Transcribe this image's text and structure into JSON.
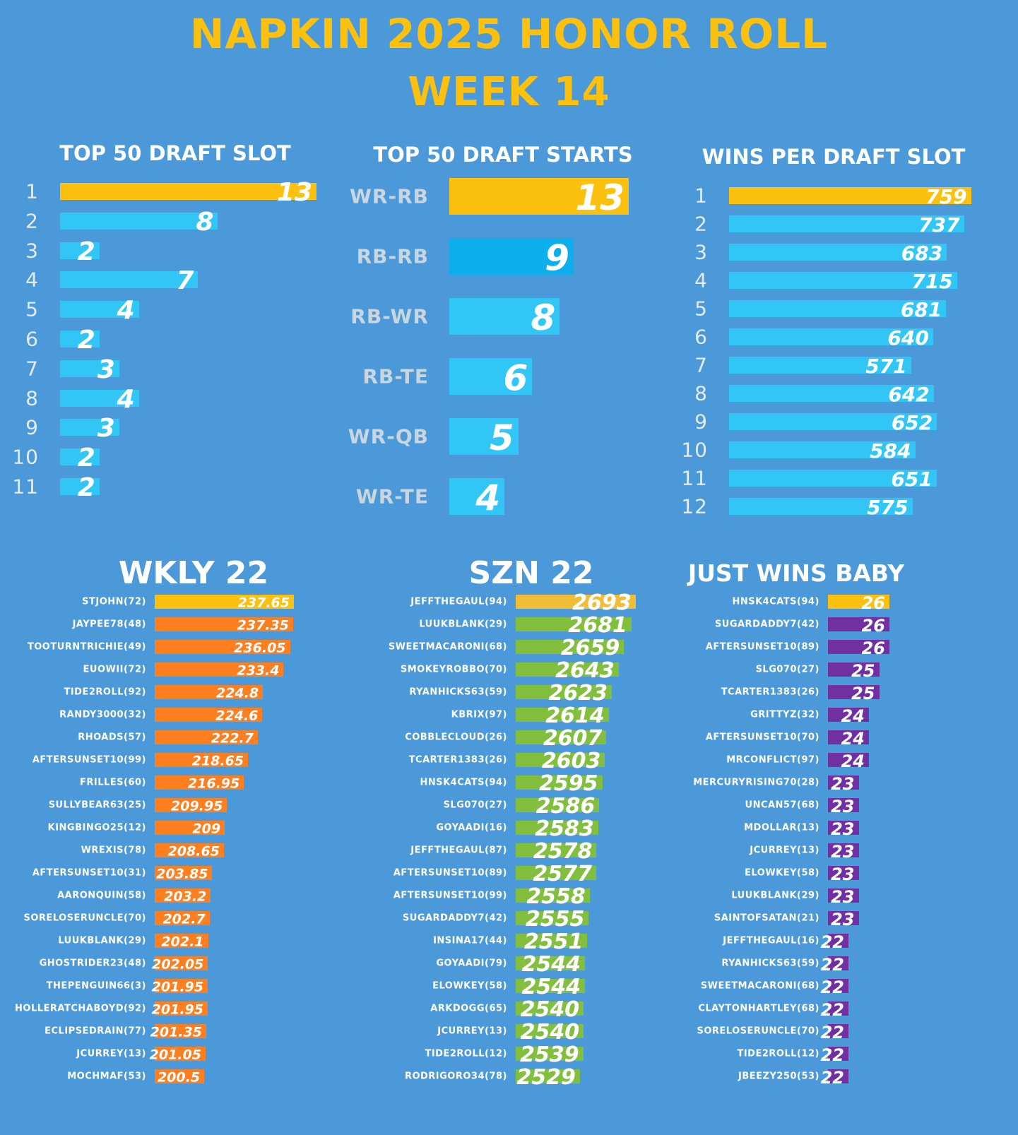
{
  "header": {
    "title": "NAPKIN 2025 HONOR ROLL",
    "subtitle": "WEEK 14"
  },
  "colors": {
    "background": "#4b99d9",
    "highlight": "#fcc10e",
    "cyan": "#32c6f6",
    "dark_cyan": "#0caeec",
    "orange": "#fd7f20",
    "green": "#82bf3f",
    "purple": "#7030a0",
    "title_gold": "#fcc10e"
  },
  "chart_data": [
    {
      "type": "bar",
      "orientation": "horizontal",
      "title": "TOP 50 DRAFT SLOT",
      "categories": [
        "1",
        "2",
        "3",
        "4",
        "5",
        "6",
        "7",
        "8",
        "9",
        "10",
        "11"
      ],
      "values": [
        13,
        8,
        2,
        7,
        4,
        2,
        3,
        4,
        3,
        2,
        2
      ],
      "xlim": [
        0,
        13
      ],
      "bar_color": "#32c6f6",
      "top_color": "#fcc10e"
    },
    {
      "type": "bar",
      "orientation": "horizontal",
      "title": "TOP 50 DRAFT STARTS",
      "categories": [
        "WR-RB",
        "RB-RB",
        "RB-WR",
        "RB-TE",
        "WR-QB",
        "WR-TE"
      ],
      "values": [
        13,
        9,
        8,
        6,
        5,
        4
      ],
      "xlim": [
        0,
        13
      ],
      "bar_color": "#32c6f6",
      "top_color": "#fcc10e",
      "second_color": "#0caeec"
    },
    {
      "type": "bar",
      "orientation": "horizontal",
      "title": "WINS PER DRAFT SLOT",
      "categories": [
        "1",
        "2",
        "3",
        "4",
        "5",
        "6",
        "7",
        "8",
        "9",
        "10",
        "11",
        "12"
      ],
      "values": [
        759,
        737,
        683,
        715,
        681,
        640,
        571,
        642,
        652,
        584,
        651,
        575
      ],
      "xlim": [
        0,
        760
      ],
      "bar_color": "#32c6f6",
      "top_color": "#fcc10e"
    },
    {
      "type": "bar",
      "orientation": "horizontal",
      "title": "WKLY 22",
      "categories": [
        "STJOHN(72)",
        "JAYPEE78(48)",
        "TOOTURNTRICHIE(49)",
        "EUOWII(72)",
        "TIDE2ROLL(92)",
        "RANDY3000(32)",
        "RHOADS(57)",
        "AFTERSUNSET10(99)",
        "FRILLES(60)",
        "SULLYBEAR63(25)",
        "KINGBINGO25(12)",
        "WREXIS(78)",
        "AFTERSUNSET10(31)",
        "AARONQUIN(58)",
        "SORELOSERUNCLE(70)",
        "LUUKBLANK(29)",
        "GHOSTRIDER23(48)",
        "THEPENGUIN66(3)",
        "HOLLERATCHABOYD(92)",
        "ECLIPSEDRAIN(77)",
        "JCURREY(13)",
        "MOCHMAF(53)"
      ],
      "values": [
        "237.65",
        "237.35",
        "236.05",
        "233.4",
        "224.8",
        "224.6",
        "222.7",
        "218.65",
        "216.95",
        "209.95",
        "209",
        "208.65",
        "203.85",
        "203.2",
        "202.7",
        "202.1",
        "202.05",
        "201.95",
        "201.95",
        "201.35",
        "201.05",
        "200.5"
      ],
      "xlim": [
        180,
        240
      ],
      "bar_color": "#fd7f20",
      "top_color": "#fcc10e"
    },
    {
      "type": "bar",
      "orientation": "horizontal",
      "title": "SZN 22",
      "categories": [
        "JEFFTHEGAUL(94)",
        "LUUKBLANK(29)",
        "SWEETMACARONI(68)",
        "SMOKEYROBBO(70)",
        "RYANHICKS63(59)",
        "KBRIX(97)",
        "COBBLECLOUD(26)",
        "TCARTER1383(26)",
        "HNSK4CATS(94)",
        "SLG070(27)",
        "GOYAADI(16)",
        "JEFFTHEGAUL(87)",
        "AFTERSUNSET10(89)",
        "AFTERSUNSET10(99)",
        "SUGARDADDY7(42)",
        "INSINA17(44)",
        "GOYAADI(79)",
        "ELOWKEY(58)",
        "ARKDOGG(65)",
        "JCURREY(13)",
        "TIDE2ROLL(12)",
        "RODRIGORO34(78)"
      ],
      "values": [
        2693,
        2681,
        2659,
        2643,
        2623,
        2614,
        2607,
        2603,
        2595,
        2586,
        2583,
        2578,
        2577,
        2558,
        2555,
        2551,
        2544,
        2544,
        2540,
        2540,
        2539,
        2529
      ],
      "xlim": [
        2340,
        2700
      ],
      "bar_color": "#82bf3f",
      "top_color": "#f0bd38"
    },
    {
      "type": "bar",
      "orientation": "horizontal",
      "title": "JUST WINS BABY",
      "categories": [
        "HNSK4CATS(94)",
        "SUGARDADDY7(42)",
        "AFTERSUNSET10(89)",
        "SLG070(27)",
        "TCARTER1383(26)",
        "GRITTYZ(32)",
        "AFTERSUNSET10(70)",
        "MRCONFLICT(97)",
        "MERCURYRISING70(28)",
        "UNCAN57(68)",
        "MDOLLAR(13)",
        "JCURREY(13)",
        "ELOWKEY(58)",
        "LUUKBLANK(29)",
        "SAINTOFSATAN(21)",
        "JEFFTHEGAUL(16)",
        "RYANHICKS63(59)",
        "SWEETMACARONI(68)",
        "CLAYTONHARTLEY(68)",
        "SORELOSERUNCLE(70)",
        "TIDE2ROLL(12)",
        "JBEEZY250(53)"
      ],
      "values": [
        26,
        26,
        26,
        25,
        25,
        24,
        24,
        24,
        23,
        23,
        23,
        23,
        23,
        23,
        23,
        22,
        22,
        22,
        22,
        22,
        22,
        22
      ],
      "xlim": [
        20,
        26
      ],
      "bar_color": "#7030a0",
      "top_color": "#fcc10e"
    }
  ]
}
